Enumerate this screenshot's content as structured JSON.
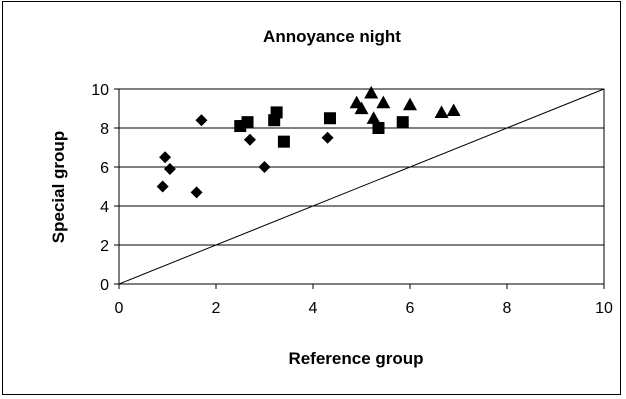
{
  "chart_data": {
    "type": "scatter",
    "title": "Annoyance night",
    "xlabel": "Reference group",
    "ylabel": "Special group",
    "xlim": [
      0,
      10
    ],
    "ylim": [
      0,
      10
    ],
    "xticks": [
      "0",
      "2",
      "4",
      "6",
      "8",
      "10"
    ],
    "yticks": [
      "0",
      "2",
      "4",
      "6",
      "8",
      "10"
    ],
    "grid": "horizontal",
    "legend": "none",
    "reference_line": {
      "type": "diagonal",
      "from": [
        0,
        0
      ],
      "to": [
        10,
        10
      ]
    },
    "series": [
      {
        "marker": "diamond",
        "points": [
          [
            0.9,
            5.0
          ],
          [
            0.95,
            6.5
          ],
          [
            1.05,
            5.9
          ],
          [
            1.6,
            4.7
          ],
          [
            1.7,
            8.4
          ],
          [
            2.7,
            7.4
          ],
          [
            3.0,
            6.0
          ],
          [
            4.3,
            7.5
          ]
        ]
      },
      {
        "marker": "square",
        "points": [
          [
            2.5,
            8.1
          ],
          [
            2.65,
            8.3
          ],
          [
            3.2,
            8.4
          ],
          [
            3.25,
            8.8
          ],
          [
            3.4,
            7.3
          ],
          [
            4.35,
            8.5
          ],
          [
            5.35,
            8.0
          ],
          [
            5.85,
            8.3
          ]
        ]
      },
      {
        "marker": "triangle",
        "points": [
          [
            4.9,
            9.3
          ],
          [
            5.0,
            9.0
          ],
          [
            5.2,
            9.8
          ],
          [
            5.25,
            8.5
          ],
          [
            5.45,
            9.3
          ],
          [
            6.0,
            9.2
          ],
          [
            6.65,
            8.8
          ],
          [
            6.9,
            8.9
          ]
        ]
      }
    ]
  }
}
